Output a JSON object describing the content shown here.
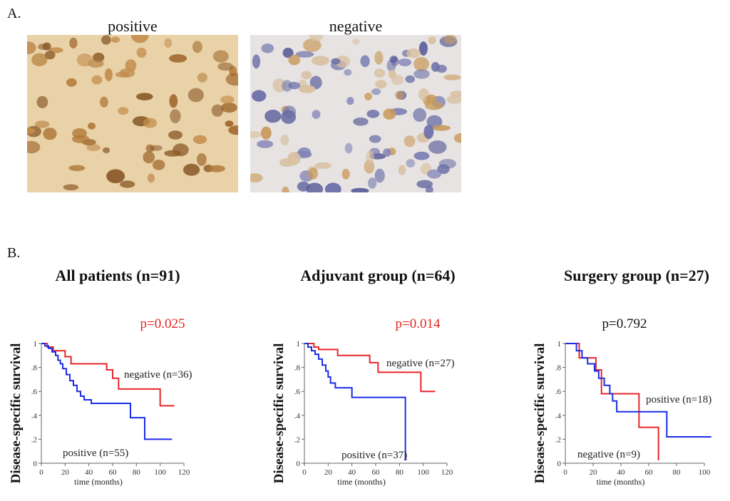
{
  "figure": {
    "panel_a_label": "A.",
    "panel_b_label": "B.",
    "image_positive_label": "positive",
    "image_negative_label": "negative"
  },
  "colors": {
    "negative_red": "#e8262a",
    "positive_blue": "#1a2ee6",
    "positive_navy": "#1c2a8a",
    "pvalue_red": "#e0261f",
    "pvalue_black": "#111111",
    "stain_brown": "#b27a3a",
    "stain_background": "#e9d2a8",
    "hematoxylin_blue": "#6b6fa8"
  },
  "chart_data": [
    {
      "type": "line",
      "title": "All patients (n=91)",
      "xlabel": "time (months)",
      "ylabel": "Disease-specific survival",
      "p_value": "p=0.025",
      "p_color": "#e0261f",
      "xlim": [
        0,
        120
      ],
      "ylim": [
        0,
        1
      ],
      "x_ticks": [
        "0",
        "20",
        "40",
        "60",
        "80",
        "100",
        "120"
      ],
      "y_ticks": [
        "0",
        ".2",
        ".4",
        ".6",
        ".8",
        "1"
      ],
      "series": [
        {
          "name": "negative (n=36)",
          "color": "#e8262a",
          "steps": [
            [
              0,
              1
            ],
            [
              5,
              0.97
            ],
            [
              10,
              0.94
            ],
            [
              20,
              0.89
            ],
            [
              25,
              0.83
            ],
            [
              55,
              0.78
            ],
            [
              60,
              0.71
            ],
            [
              65,
              0.62
            ],
            [
              100,
              0.48
            ],
            [
              112,
              0.48
            ]
          ]
        },
        {
          "name": "positive (n=55)",
          "color": "#1a2ee6",
          "steps": [
            [
              0,
              1
            ],
            [
              3,
              0.98
            ],
            [
              6,
              0.96
            ],
            [
              9,
              0.93
            ],
            [
              12,
              0.9
            ],
            [
              14,
              0.86
            ],
            [
              16,
              0.83
            ],
            [
              18,
              0.79
            ],
            [
              21,
              0.74
            ],
            [
              24,
              0.69
            ],
            [
              27,
              0.65
            ],
            [
              30,
              0.6
            ],
            [
              33,
              0.56
            ],
            [
              36,
              0.53
            ],
            [
              42,
              0.5
            ],
            [
              75,
              0.38
            ],
            [
              87,
              0.2
            ],
            [
              110,
              0.2
            ]
          ]
        }
      ]
    },
    {
      "type": "line",
      "title": "Adjuvant group (n=64)",
      "xlabel": "time (months)",
      "ylabel": "Disease-specific survival",
      "p_value": "p=0.014",
      "p_color": "#e0261f",
      "xlim": [
        0,
        120
      ],
      "ylim": [
        0,
        1
      ],
      "x_ticks": [
        "0",
        "20",
        "40",
        "60",
        "80",
        "100",
        "120"
      ],
      "y_ticks": [
        "0",
        ".2",
        ".4",
        ".6",
        ".8",
        "1"
      ],
      "series": [
        {
          "name": "negative (n=27)",
          "color": "#e8262a",
          "steps": [
            [
              0,
              1
            ],
            [
              8,
              0.97
            ],
            [
              12,
              0.95
            ],
            [
              28,
              0.9
            ],
            [
              55,
              0.84
            ],
            [
              62,
              0.76
            ],
            [
              98,
              0.6
            ],
            [
              110,
              0.6
            ]
          ]
        },
        {
          "name": "positive (n=37)",
          "color": "#1a2ee6",
          "steps": [
            [
              0,
              1
            ],
            [
              3,
              0.97
            ],
            [
              6,
              0.94
            ],
            [
              9,
              0.91
            ],
            [
              12,
              0.87
            ],
            [
              15,
              0.82
            ],
            [
              18,
              0.77
            ],
            [
              20,
              0.72
            ],
            [
              22,
              0.67
            ],
            [
              26,
              0.63
            ],
            [
              40,
              0.55
            ],
            [
              85,
              0.03
            ],
            [
              86,
              0.03
            ]
          ]
        }
      ]
    },
    {
      "type": "line",
      "title": "Surgery group (n=27)",
      "xlabel": "time (months)",
      "ylabel": "Disease-specific survival",
      "p_value": "p=0.792",
      "p_color": "#111111",
      "xlim": [
        0,
        100
      ],
      "ylim": [
        0,
        1
      ],
      "x_ticks": [
        "0",
        "20",
        "40",
        "60",
        "80",
        "100"
      ],
      "y_ticks": [
        "0",
        ".2",
        ".4",
        ".6",
        ".8",
        "1"
      ],
      "series": [
        {
          "name": "negative (n=9)",
          "color": "#e8262a",
          "steps": [
            [
              0,
              1
            ],
            [
              10,
              0.88
            ],
            [
              22,
              0.78
            ],
            [
              26,
              0.58
            ],
            [
              53,
              0.3
            ],
            [
              67,
              0.03
            ],
            [
              67.5,
              0.03
            ]
          ]
        },
        {
          "name": "positive (n=18)",
          "color": "#1a2ee6",
          "steps": [
            [
              0,
              1
            ],
            [
              8,
              0.94
            ],
            [
              12,
              0.88
            ],
            [
              16,
              0.83
            ],
            [
              21,
              0.77
            ],
            [
              24,
              0.71
            ],
            [
              28,
              0.65
            ],
            [
              32,
              0.58
            ],
            [
              34,
              0.52
            ],
            [
              37,
              0.43
            ],
            [
              73,
              0.22
            ],
            [
              105,
              0.22
            ]
          ]
        }
      ]
    }
  ]
}
